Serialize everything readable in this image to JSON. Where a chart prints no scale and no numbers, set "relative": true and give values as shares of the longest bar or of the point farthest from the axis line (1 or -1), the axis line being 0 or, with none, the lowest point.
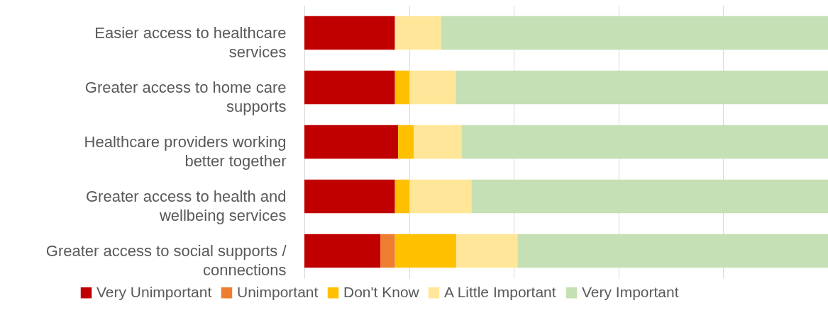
{
  "chart_data": {
    "type": "bar",
    "orientation": "horizontal",
    "stacked": true,
    "relative": true,
    "grid": "x",
    "legend": "bottom",
    "categories": [
      "Easier access to healthcare services",
      "Greater access to home care supports",
      "Healthcare providers working better together",
      "Greater access to health and wellbeing services",
      "Greater access to social supports / connections"
    ],
    "series": [
      {
        "name": "Very Unimportant",
        "color": "#c00000",
        "values": [
          0.173,
          0.173,
          0.179,
          0.173,
          0.145
        ]
      },
      {
        "name": "Unimportant",
        "color": "#ed7d31",
        "values": [
          0,
          0,
          0,
          0,
          0.028
        ]
      },
      {
        "name": "Don't Know",
        "color": "#ffc000",
        "values": [
          0,
          0.028,
          0.03,
          0.028,
          0.117
        ]
      },
      {
        "name": "A Little Important",
        "color": "#ffe699",
        "values": [
          0.088,
          0.088,
          0.091,
          0.118,
          0.117
        ]
      },
      {
        "name": "Very Important",
        "color": "#c5e0b4",
        "values": [
          0.739,
          0.711,
          0.7,
          0.681,
          0.593
        ]
      }
    ]
  }
}
